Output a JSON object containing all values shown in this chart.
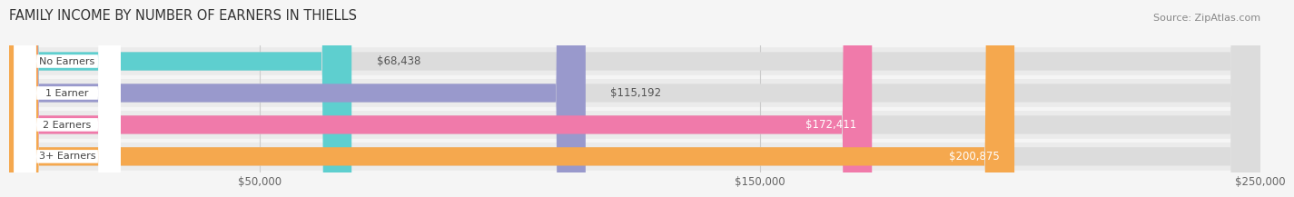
{
  "title": "FAMILY INCOME BY NUMBER OF EARNERS IN THIELLS",
  "source": "Source: ZipAtlas.com",
  "categories": [
    "No Earners",
    "1 Earner",
    "2 Earners",
    "3+ Earners"
  ],
  "values": [
    68438,
    115192,
    172411,
    200875
  ],
  "labels": [
    "$68,438",
    "$115,192",
    "$172,411",
    "$200,875"
  ],
  "bar_colors": [
    "#5ecfcf",
    "#9999cc",
    "#f07aaa",
    "#f5a84e"
  ],
  "background_color": "#f5f5f5",
  "row_bg_color": "#ebebeb",
  "bar_bg_color": "#dcdcdc",
  "xlim": [
    0,
    250000
  ],
  "xticks": [
    50000,
    150000,
    250000
  ],
  "xticklabels": [
    "$50,000",
    "$150,000",
    "$250,000"
  ],
  "title_fontsize": 10.5,
  "label_fontsize": 8.5,
  "tick_fontsize": 8.5,
  "source_fontsize": 8
}
